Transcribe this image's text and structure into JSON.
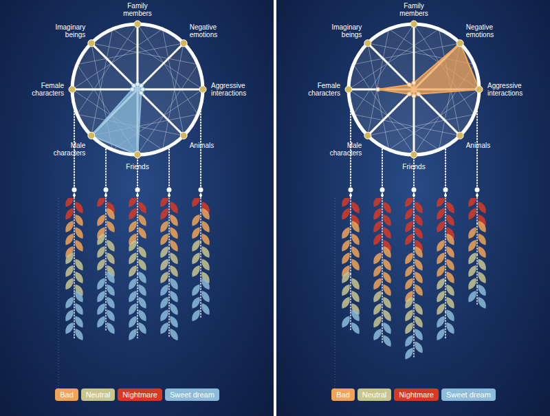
{
  "chart_data": [
    {
      "type": "radar",
      "categories": [
        "Family members",
        "Negative emotions",
        "Aggressive interactions",
        "Animals",
        "Friends",
        "Male characters",
        "Female characters",
        "Imaginary beings"
      ],
      "values": [
        0.08,
        0.08,
        0.08,
        0.08,
        1,
        1,
        0.08,
        0.08
      ],
      "color": "#8cbcd9",
      "ylim": [
        0,
        1
      ],
      "tick_labels": "x"
    },
    {
      "type": "bar",
      "stacked": true,
      "categories": [
        null,
        null,
        null,
        null,
        null
      ],
      "series": [
        {
          "name": "Nightmare",
          "color": "#d63a27",
          "values": [
            3,
            2,
            3,
            3,
            2
          ]
        },
        {
          "name": "Bad",
          "color": "#f0a458",
          "values": [
            6,
            4,
            4,
            5,
            5
          ]
        },
        {
          "name": "Neutral",
          "color": "#c8c690",
          "values": [
            6,
            6,
            5,
            5,
            6
          ]
        },
        {
          "name": "Sweet dream",
          "color": "#8cbcd9",
          "values": [
            7,
            9,
            10,
            9,
            6
          ]
        }
      ],
      "ylim": [
        0,
        30
      ],
      "tick_labels": false,
      "legend": "bottom"
    },
    {
      "type": "radar",
      "categories": [
        "Family members",
        "Negative emotions",
        "Aggressive interactions",
        "Animals",
        "Friends",
        "Male characters",
        "Female characters",
        "Imaginary beings"
      ],
      "values": [
        0.1,
        1,
        1,
        0.1,
        0.1,
        0.1,
        0.55,
        0.1
      ],
      "color": "#f0a458",
      "ylim": [
        0,
        1
      ],
      "tick_labels": "x"
    },
    {
      "type": "bar",
      "stacked": true,
      "categories": [
        null,
        null,
        null,
        null,
        null
      ],
      "series": [
        {
          "name": "Nightmare",
          "color": "#d63a27",
          "values": [
            4,
            8,
            8,
            6,
            4
          ]
        },
        {
          "name": "Bad",
          "color": "#f0a458",
          "values": [
            8,
            7,
            8,
            7,
            5
          ]
        },
        {
          "name": "Neutral",
          "color": "#c8c690",
          "values": [
            6,
            5,
            5,
            5,
            5
          ]
        },
        {
          "name": "Sweet dream",
          "color": "#8cbcd9",
          "values": [
            3,
            3,
            4,
            4,
            3
          ]
        }
      ],
      "ylim": [
        0,
        30
      ],
      "tick_labels": false,
      "legend": "bottom"
    }
  ]
}
